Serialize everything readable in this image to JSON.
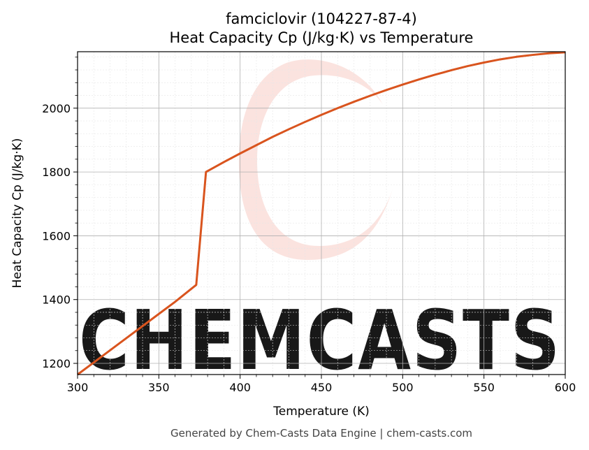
{
  "chart_data": {
    "type": "line",
    "title": "famciclovir (104227-87-4)",
    "subtitle": "Heat Capacity Cp (J/kg·K) vs Temperature",
    "xlabel": "Temperature (K)",
    "ylabel": "Heat Capacity Cp (J/kg·K)",
    "xlim": [
      300,
      600
    ],
    "ylim": [
      1165,
      2177
    ],
    "x_ticks": [
      300,
      350,
      400,
      450,
      500,
      550,
      600
    ],
    "y_ticks": [
      1200,
      1400,
      1600,
      1800,
      2000
    ],
    "grid": true,
    "series": [
      {
        "color": "#d9541e",
        "x": [
          300,
          310,
          320,
          330,
          340,
          350,
          360,
          373,
          379,
          390,
          400,
          410,
          420,
          430,
          440,
          450,
          460,
          470,
          480,
          490,
          500,
          510,
          520,
          530,
          540,
          550,
          560,
          570,
          580,
          590,
          600
        ],
        "y": [
          1165,
          1203,
          1241,
          1279,
          1317,
          1355,
          1393,
          1446,
          1800,
          1831,
          1858,
          1884,
          1910,
          1934,
          1957,
          1979,
          2000,
          2020,
          2039,
          2057,
          2074,
          2090,
          2105,
          2119,
          2132,
          2143,
          2153,
          2161,
          2167,
          2172,
          2175
        ]
      }
    ]
  },
  "watermark": {
    "text": "CHEMCASTS",
    "color": "#fbe0dc"
  },
  "footer": "Generated by Chem-Casts Data Engine | chem-casts.com"
}
